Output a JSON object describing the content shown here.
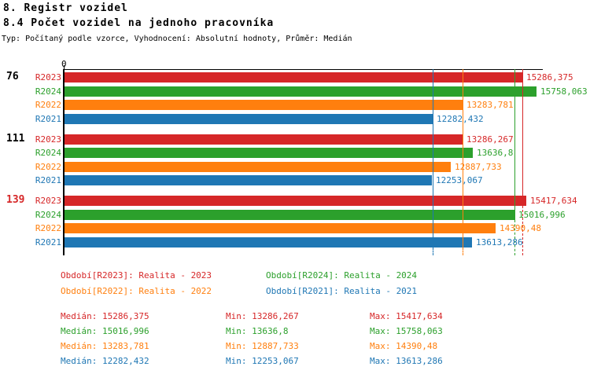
{
  "header": {
    "title": "8. Registr vozidel",
    "subtitle": "8.4 Počet vozidel na jednoho pracovníka",
    "meta": "Typ: Počítaný podle vzorce, Vyhodnocení: Absolutní hodnoty, Průměr: Medián"
  },
  "colors": {
    "R2023": "#d62728",
    "R2024": "#2ca02c",
    "R2022": "#ff7f0e",
    "R2021": "#1f77b4",
    "axis": "#000000",
    "highlight_group": "#d62728"
  },
  "chart_data": {
    "type": "bar",
    "orientation": "horizontal",
    "x_origin_label": "0",
    "axis_max": 15758.063,
    "series_order": [
      "R2023",
      "R2024",
      "R2022",
      "R2021"
    ],
    "groups": [
      {
        "label": "76",
        "label_color": "#000000",
        "bars": [
          {
            "series": "R2023",
            "value": 15286.375,
            "display": "15286,375"
          },
          {
            "series": "R2024",
            "value": 15758.063,
            "display": "15758,063"
          },
          {
            "series": "R2022",
            "value": 13283.781,
            "display": "13283,781"
          },
          {
            "series": "R2021",
            "value": 12282.432,
            "display": "12282,432"
          }
        ]
      },
      {
        "label": "111",
        "label_color": "#000000",
        "bars": [
          {
            "series": "R2023",
            "value": 13286.267,
            "display": "13286,267"
          },
          {
            "series": "R2024",
            "value": 13636.8,
            "display": "13636,8"
          },
          {
            "series": "R2022",
            "value": 12887.733,
            "display": "12887,733"
          },
          {
            "series": "R2021",
            "value": 12253.067,
            "display": "12253,067"
          }
        ]
      },
      {
        "label": "139",
        "label_color": "#d62728",
        "bars": [
          {
            "series": "R2023",
            "value": 15417.634,
            "display": "15417,634"
          },
          {
            "series": "R2024",
            "value": 15016.996,
            "display": "15016,996"
          },
          {
            "series": "R2022",
            "value": 14390.48,
            "display": "14390,48"
          },
          {
            "series": "R2021",
            "value": 13613.286,
            "display": "13613,286"
          }
        ]
      }
    ],
    "medians": {
      "R2023": 15286.375,
      "R2024": 15016.996,
      "R2022": 13283.781,
      "R2021": 12282.432
    }
  },
  "legend": [
    {
      "text": "Období[R2023]: Realita - 2023",
      "color": "#d62728"
    },
    {
      "text": "Období[R2024]: Realita - 2024",
      "color": "#2ca02c"
    },
    {
      "text": "Období[R2022]: Realita - 2022",
      "color": "#ff7f0e"
    },
    {
      "text": "Období[R2021]: Realita - 2021",
      "color": "#1f77b4"
    }
  ],
  "stats": {
    "rows": [
      {
        "median": "Medián: 15286,375",
        "min": "Min: 13286,267",
        "max": "Max: 15417,634",
        "color": "#d62728"
      },
      {
        "median": "Medián: 15016,996",
        "min": "Min: 13636,8",
        "max": "Max: 15758,063",
        "color": "#2ca02c"
      },
      {
        "median": "Medián: 13283,781",
        "min": "Min: 12887,733",
        "max": "Max: 14390,48",
        "color": "#ff7f0e"
      },
      {
        "median": "Medián: 12282,432",
        "min": "Min: 12253,067",
        "max": "Max: 13613,286",
        "color": "#1f77b4"
      }
    ]
  }
}
